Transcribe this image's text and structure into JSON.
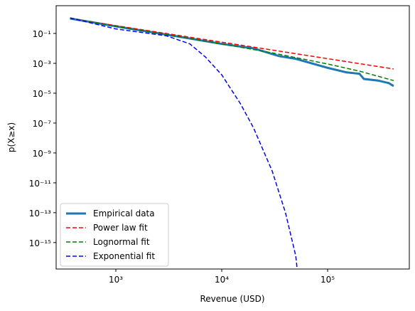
{
  "chart_data": {
    "type": "line",
    "xlabel": "Revenue (USD)",
    "ylabel": "p(X≥x)",
    "xscale": "log",
    "yscale": "log",
    "xlim": [
      273,
      591000
    ],
    "ylim": [
      7.2,
      1.7e-17
    ],
    "xticks": [
      {
        "value": 1000,
        "label": "10³"
      },
      {
        "value": 10000,
        "label": "10⁴"
      },
      {
        "value": 100000,
        "label": "10⁵"
      }
    ],
    "yticks": [
      {
        "value": 0.1,
        "label": "10⁻¹"
      },
      {
        "value": 0.001,
        "label": "10⁻³"
      },
      {
        "value": 1e-05,
        "label": "10⁻⁵"
      },
      {
        "value": 1e-07,
        "label": "10⁻⁷"
      },
      {
        "value": 1e-09,
        "label": "10⁻⁹"
      },
      {
        "value": 1e-11,
        "label": "10⁻¹¹"
      },
      {
        "value": 1e-13,
        "label": "10⁻¹³"
      },
      {
        "value": 1e-15,
        "label": "10⁻¹⁵"
      }
    ],
    "legend": "lower left",
    "series": [
      {
        "name": "Empirical data",
        "color": "#1f77b4",
        "style": "solid",
        "x": [
          370,
          1000,
          4000,
          10000,
          20000,
          35000,
          50000,
          100000,
          150000,
          200000,
          220000,
          300000,
          380000,
          420000
        ],
        "values": [
          1,
          0.3,
          0.06,
          0.02,
          0.01,
          0.003,
          0.002,
          0.0005,
          0.00025,
          0.0002,
          9e-05,
          7e-05,
          4.7e-05,
          3e-05
        ]
      },
      {
        "name": "Power law fit",
        "color": "#ff0000",
        "style": "dashed",
        "x": [
          370,
          420000
        ],
        "values": [
          1,
          0.00042
        ]
      },
      {
        "name": "Lognormal fit",
        "color": "#008000",
        "style": "dashed",
        "x": [
          370,
          1000,
          4000,
          10000,
          30000,
          100000,
          200000,
          420000
        ],
        "values": [
          1,
          0.3,
          0.06,
          0.02,
          0.005,
          0.0009,
          0.0003,
          7e-05
        ]
      },
      {
        "name": "Exponential fit",
        "color": "#0000ff",
        "style": "dashed",
        "x": [
          370,
          1000,
          3000,
          5000,
          7000,
          10000,
          15000,
          20000,
          30000,
          40000,
          50000,
          52000
        ],
        "values": [
          1.1,
          0.2,
          0.07,
          0.02,
          0.0027,
          0.00017,
          2e-06,
          4.7e-08,
          6e-11,
          1e-13,
          1.3e-16,
          1e-17
        ]
      }
    ]
  }
}
